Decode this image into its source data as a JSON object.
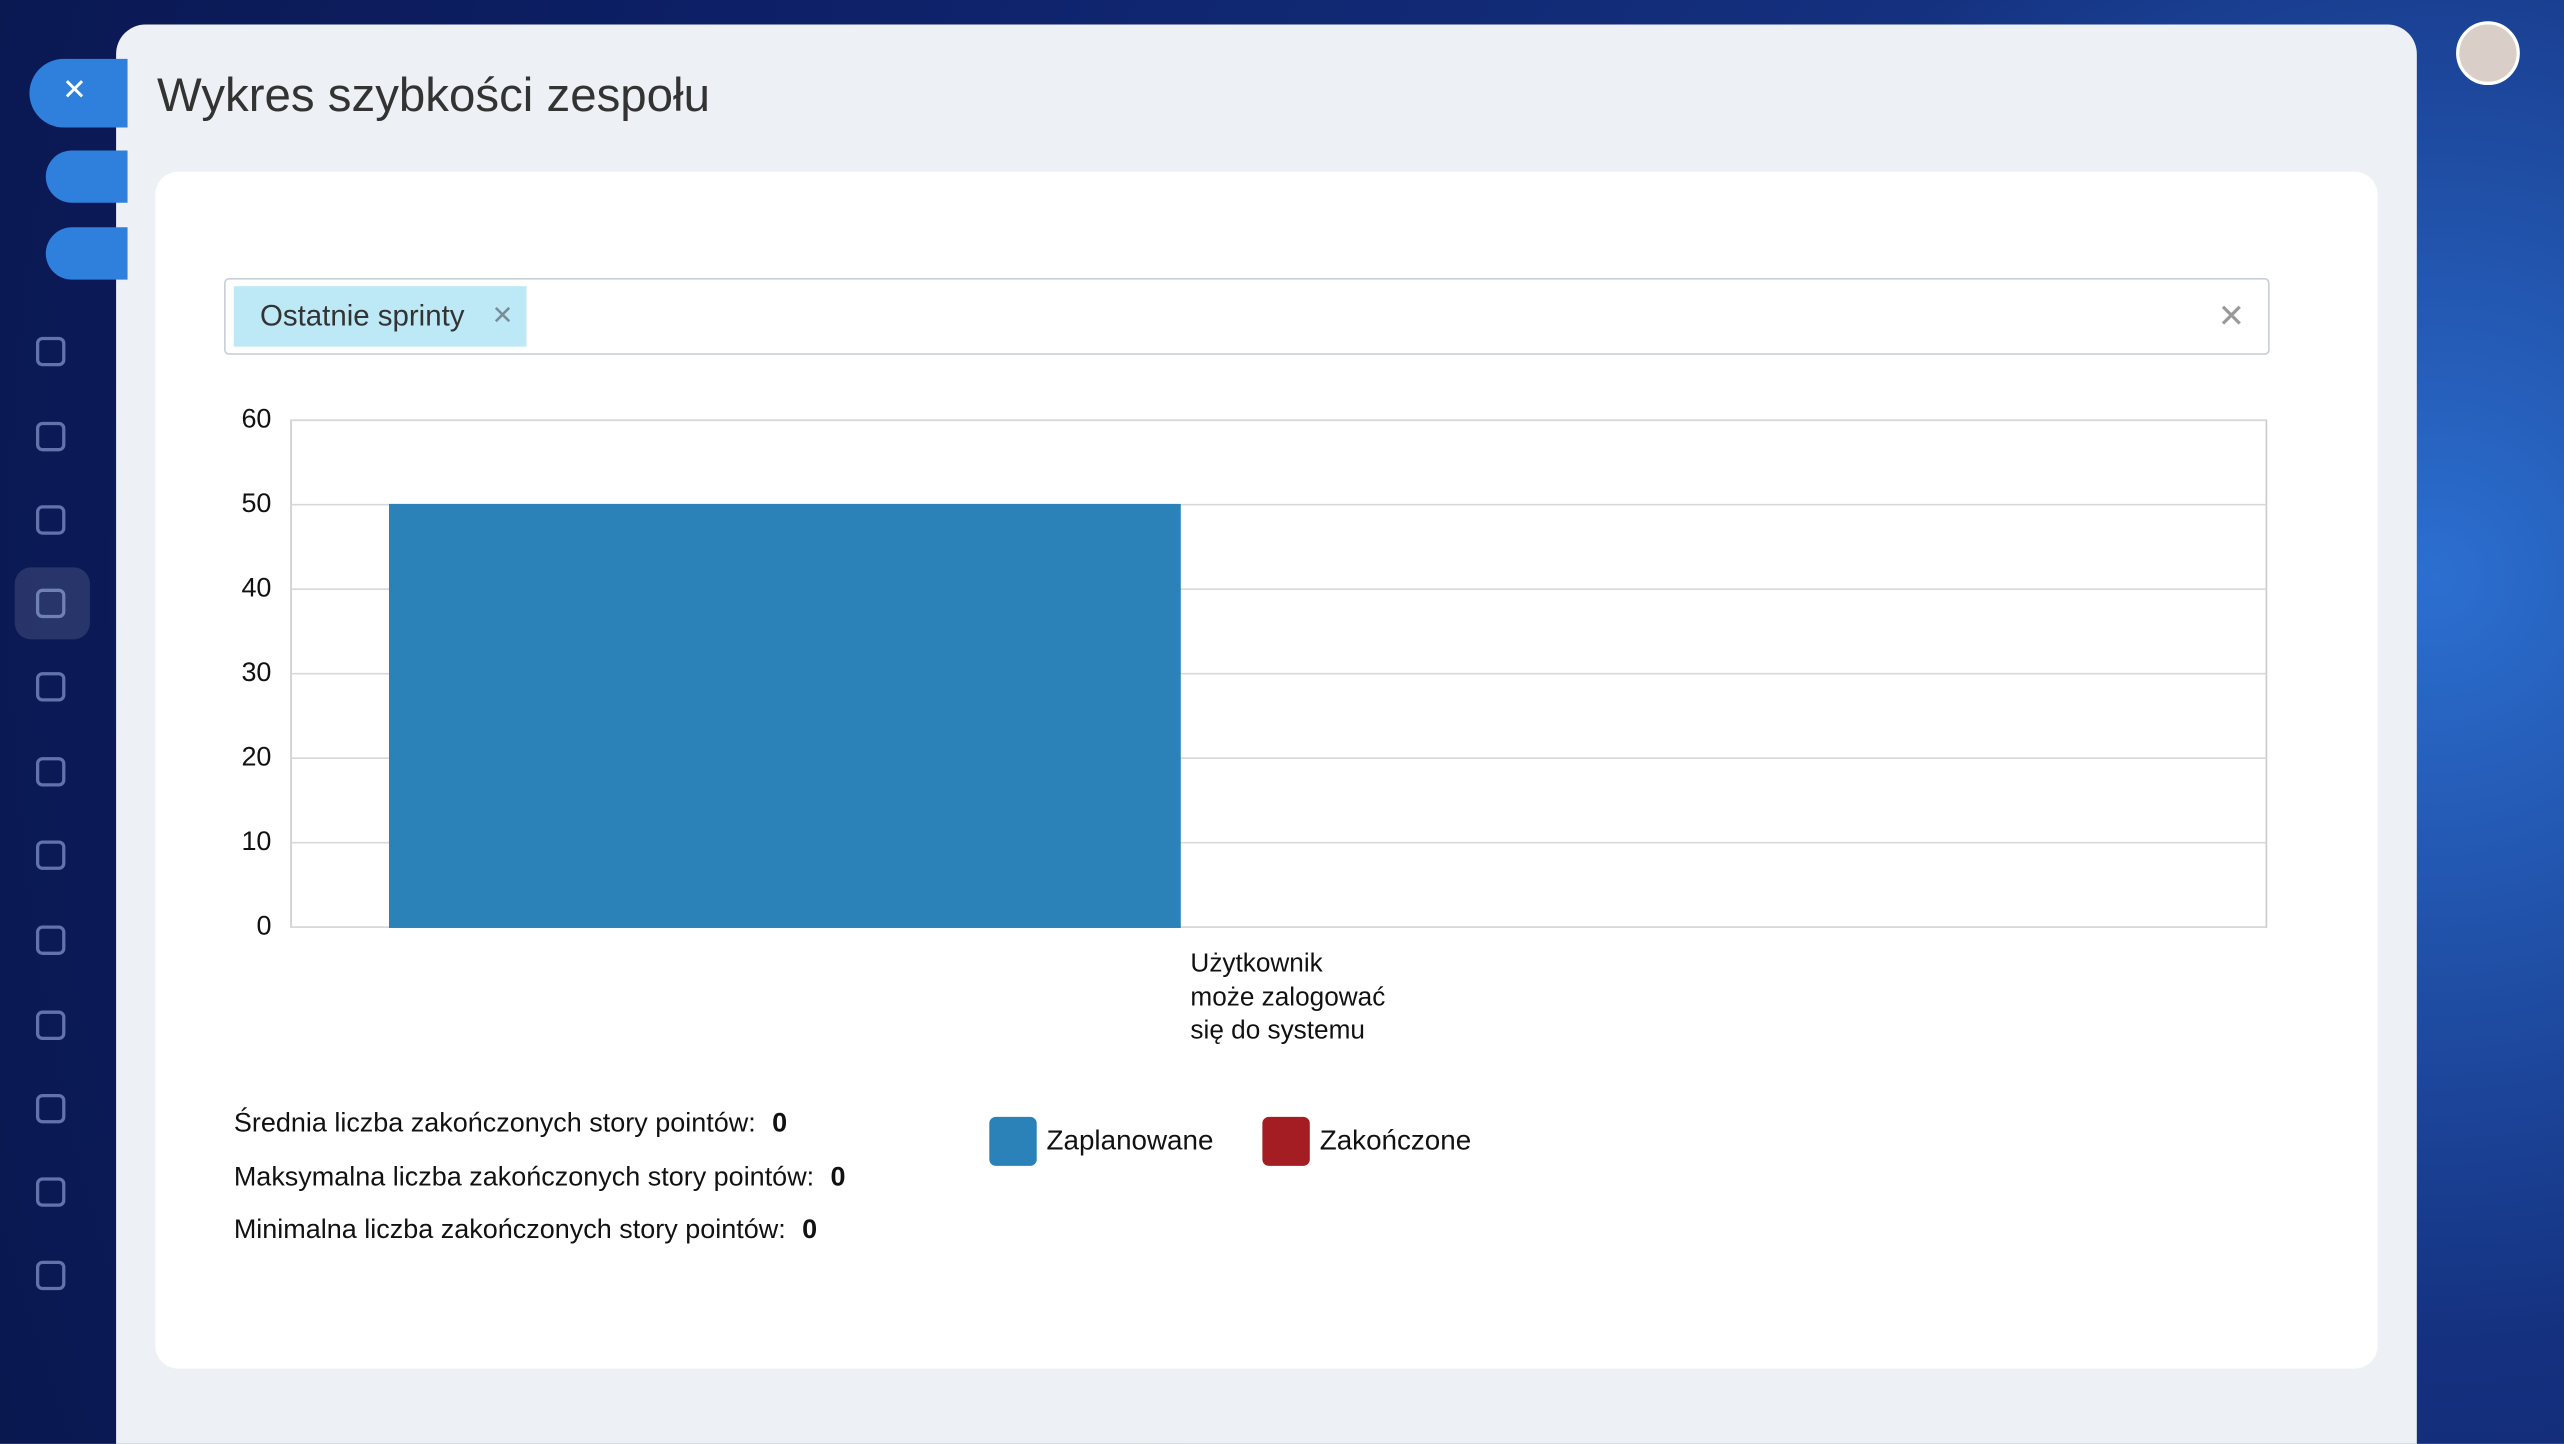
{
  "header": {
    "title": "Wykres szybkości zespołu"
  },
  "filter": {
    "chip": "Ostatnie sprinty"
  },
  "chart_data": {
    "type": "bar",
    "categories": [
      "Użytkownik może zalogować się do systemu"
    ],
    "series": [
      {
        "name": "Zaplanowane",
        "color": "#2b82b8",
        "values": [
          50
        ]
      },
      {
        "name": "Zakończone",
        "color": "#a31d22",
        "values": [
          0
        ]
      }
    ],
    "ylim": [
      0,
      60
    ],
    "yticks": [
      0,
      10,
      20,
      30,
      40,
      50,
      60
    ],
    "grid": true
  },
  "stats": [
    {
      "label": "Średnia liczba zakończonych story pointów:",
      "value": 0
    },
    {
      "label": "Maksymalna liczba zakończonych story pointów:",
      "value": 0
    },
    {
      "label": "Minimalna liczba zakończonych story pointów:",
      "value": 0
    }
  ]
}
